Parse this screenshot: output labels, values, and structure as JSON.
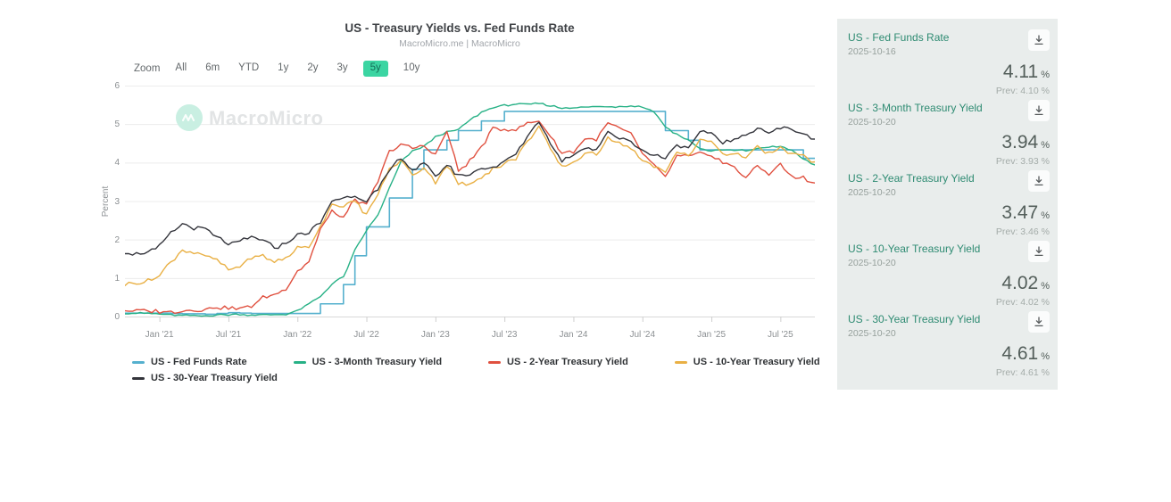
{
  "header": {
    "title": "US - Treasury Yields vs. Fed Funds Rate",
    "subtitle": "MacroMicro.me | MacroMicro"
  },
  "toolbar": {
    "zoom_label": "Zoom",
    "buttons": [
      "All",
      "6m",
      "YTD",
      "1y",
      "2y",
      "3y",
      "5y",
      "10y"
    ],
    "selected": "5y",
    "selected_bg": "#3bd5a2"
  },
  "watermark": {
    "text": "MacroMicro",
    "logo": "macromicro-logo-icon"
  },
  "chart_data": {
    "type": "line",
    "title": "US - Treasury Yields vs. Fed Funds Rate",
    "xlabel": "",
    "ylabel": "Percent",
    "ylim": [
      0,
      6
    ],
    "yticks": [
      0,
      1,
      2,
      3,
      4,
      5,
      6
    ],
    "grid": "horizontal",
    "legend_position": "bottom",
    "x_start_month": "2020-10",
    "x_end_month": "2025-10",
    "x_tick_labels": [
      "Jan '21",
      "Jul '21",
      "Jan '22",
      "Jul '22",
      "Jan '23",
      "Jul '23",
      "Jan '24",
      "Jul '24",
      "Jan '25",
      "Jul '25"
    ],
    "x_tick_month_index": [
      3,
      9,
      15,
      21,
      27,
      33,
      39,
      45,
      51,
      57
    ],
    "series": [
      {
        "name": "US - Fed Funds Rate",
        "color": "#55b0ce",
        "step": true,
        "wiggle": 0,
        "values": [
          0.09,
          0.09,
          0.09,
          0.09,
          0.08,
          0.07,
          0.07,
          0.06,
          0.08,
          0.1,
          0.09,
          0.08,
          0.08,
          0.08,
          0.08,
          0.08,
          0.08,
          0.33,
          0.33,
          0.83,
          1.58,
          2.33,
          2.33,
          3.08,
          3.08,
          3.83,
          4.33,
          4.33,
          4.58,
          4.83,
          4.83,
          5.08,
          5.08,
          5.33,
          5.33,
          5.33,
          5.33,
          5.33,
          5.33,
          5.33,
          5.33,
          5.33,
          5.33,
          5.33,
          5.33,
          5.33,
          5.33,
          4.83,
          4.83,
          4.58,
          4.33,
          4.33,
          4.33,
          4.33,
          4.33,
          4.33,
          4.33,
          4.33,
          4.33,
          4.11,
          4.11
        ]
      },
      {
        "name": "US - 3-Month Treasury Yield",
        "color": "#27b186",
        "step": false,
        "wiggle": 0.02,
        "values": [
          0.09,
          0.09,
          0.08,
          0.06,
          0.04,
          0.03,
          0.02,
          0.02,
          0.04,
          0.05,
          0.05,
          0.04,
          0.05,
          0.05,
          0.06,
          0.15,
          0.33,
          0.52,
          0.85,
          1.03,
          1.72,
          2.23,
          2.63,
          3.33,
          4.02,
          4.3,
          4.42,
          4.67,
          4.79,
          4.86,
          5.1,
          5.3,
          5.43,
          5.49,
          5.52,
          5.5,
          5.53,
          5.48,
          5.42,
          5.43,
          5.44,
          5.46,
          5.45,
          5.46,
          5.48,
          5.45,
          5.33,
          4.93,
          4.73,
          4.58,
          4.37,
          4.31,
          4.32,
          4.32,
          4.31,
          4.36,
          4.41,
          4.41,
          4.32,
          4.09,
          3.94
        ]
      },
      {
        "name": "US - 2-Year Treasury Yield",
        "color": "#e0503f",
        "step": false,
        "wiggle": 0.045,
        "values": [
          0.15,
          0.16,
          0.13,
          0.13,
          0.13,
          0.16,
          0.16,
          0.16,
          0.25,
          0.22,
          0.21,
          0.28,
          0.48,
          0.57,
          0.73,
          1.18,
          1.44,
          2.28,
          2.72,
          2.56,
          3.05,
          2.89,
          3.5,
          4.28,
          4.48,
          4.38,
          4.42,
          4.21,
          4.82,
          3.78,
          4.04,
          4.4,
          4.87,
          4.88,
          4.86,
          5.04,
          5.08,
          4.68,
          4.25,
          4.27,
          4.62,
          4.59,
          5.04,
          4.87,
          4.75,
          4.26,
          3.92,
          3.64,
          4.17,
          4.15,
          4.24,
          4.2,
          3.99,
          3.89,
          3.6,
          3.9,
          3.72,
          3.96,
          3.62,
          3.61,
          3.47
        ]
      },
      {
        "name": "US - 10-Year Treasury Yield",
        "color": "#e9b044",
        "step": false,
        "wiggle": 0.045,
        "values": [
          0.85,
          0.87,
          0.92,
          1.07,
          1.42,
          1.74,
          1.63,
          1.58,
          1.45,
          1.22,
          1.31,
          1.52,
          1.58,
          1.43,
          1.52,
          1.78,
          1.83,
          2.34,
          2.93,
          2.85,
          2.98,
          2.65,
          3.19,
          3.83,
          4.05,
          3.68,
          3.88,
          3.51,
          3.92,
          3.47,
          3.42,
          3.64,
          3.84,
          3.96,
          4.11,
          4.57,
          4.93,
          4.33,
          3.88,
          3.99,
          4.25,
          4.2,
          4.68,
          4.51,
          4.4,
          4.03,
          3.9,
          3.78,
          4.28,
          4.17,
          4.58,
          4.54,
          4.24,
          4.21,
          4.16,
          4.4,
          4.23,
          4.37,
          4.23,
          4.15,
          4.02
        ]
      },
      {
        "name": "US - 30-Year Treasury Yield",
        "color": "#33343b",
        "step": false,
        "wiggle": 0.045,
        "values": [
          1.66,
          1.62,
          1.65,
          1.82,
          2.17,
          2.41,
          2.3,
          2.26,
          2.06,
          1.89,
          1.93,
          2.08,
          1.98,
          1.79,
          1.9,
          2.11,
          2.17,
          2.45,
          3.0,
          3.07,
          3.14,
          3.0,
          3.29,
          3.78,
          4.13,
          3.8,
          3.97,
          3.65,
          3.93,
          3.67,
          3.68,
          3.86,
          3.87,
          4.02,
          4.21,
          4.7,
          5.08,
          4.5,
          4.03,
          4.22,
          4.38,
          4.34,
          4.78,
          4.65,
          4.56,
          4.3,
          4.2,
          4.12,
          4.48,
          4.36,
          4.78,
          4.79,
          4.51,
          4.59,
          4.68,
          4.93,
          4.78,
          4.9,
          4.89,
          4.73,
          4.61
        ]
      }
    ]
  },
  "sidebar": {
    "bg_color": "#e9edec",
    "title_color": "#2e8b72",
    "items": [
      {
        "name": "US - Fed Funds Rate",
        "date": "2025-10-16",
        "value": "4.11",
        "unit": "%",
        "prev": "Prev: 4.10 %"
      },
      {
        "name": "US - 3-Month Treasury Yield",
        "date": "2025-10-20",
        "value": "3.94",
        "unit": "%",
        "prev": "Prev: 3.93 %"
      },
      {
        "name": "US - 2-Year Treasury Yield",
        "date": "2025-10-20",
        "value": "3.47",
        "unit": "%",
        "prev": "Prev: 3.46 %"
      },
      {
        "name": "US - 10-Year Treasury Yield",
        "date": "2025-10-20",
        "value": "4.02",
        "unit": "%",
        "prev": "Prev: 4.02 %"
      },
      {
        "name": "US - 30-Year Treasury Yield",
        "date": "2025-10-20",
        "value": "4.61",
        "unit": "%",
        "prev": "Prev: 4.61 %"
      }
    ]
  }
}
